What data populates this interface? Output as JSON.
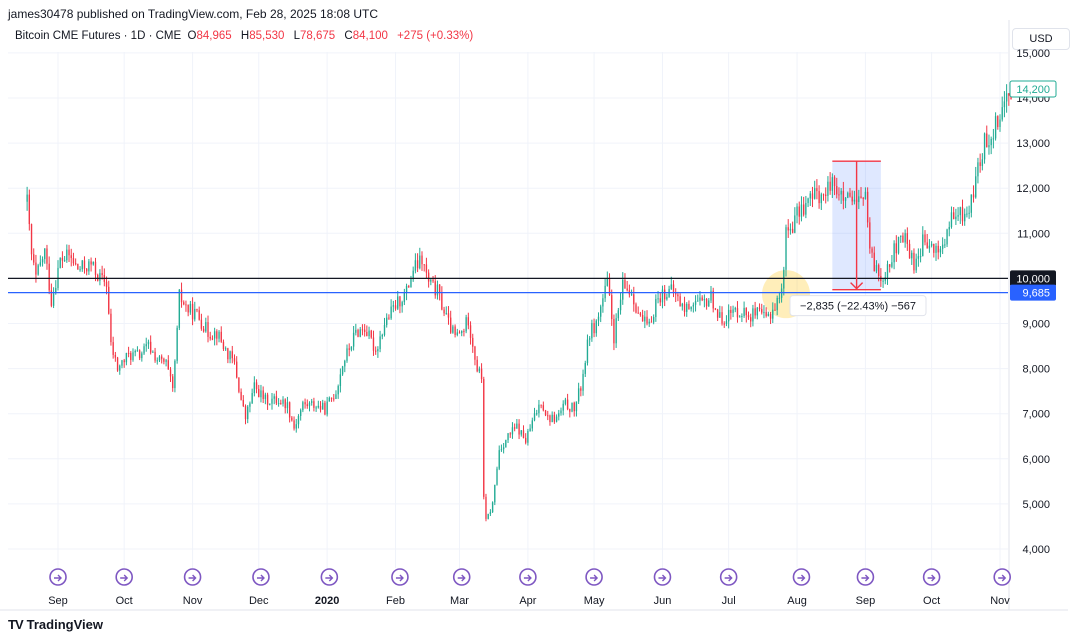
{
  "header": {
    "published": "james30478 published on TradingView.com, Feb 28, 2025 18:08 UTC"
  },
  "legend": {
    "symbol": "Bitcoin CME Futures · 1D · CME",
    "o_label": "O",
    "o_value": "84,965",
    "h_label": "H",
    "h_value": "85,530",
    "l_label": "L",
    "l_value": "78,675",
    "c_label": "C",
    "c_value": "84,100",
    "change": "+275 (+0.33%)"
  },
  "currency": "USD",
  "footer": {
    "logo": "TV",
    "brand": "TradingView"
  },
  "colors": {
    "up": "#22ab94",
    "down": "#f23645",
    "line_black": "#131722",
    "line_blue": "#2962ff",
    "accent": "#7e57c2"
  },
  "chart_data": {
    "type": "candlestick",
    "ylim": [
      3600,
      15200
    ],
    "y_ticks": [
      4000,
      5000,
      6000,
      7000,
      8000,
      9000,
      10000,
      11000,
      12000,
      13000,
      14000,
      15000
    ],
    "y_tick_labels": [
      "4,000",
      "5,000",
      "6,000",
      "7,000",
      "8,000",
      "9,000",
      "10,000",
      "11,000",
      "12,000",
      "13,000",
      "14,000",
      "15,000"
    ],
    "x_labels": [
      "Sep",
      "Oct",
      "Nov",
      "Dec",
      "2020",
      "Feb",
      "Mar",
      "Apr",
      "May",
      "Jun",
      "Jul",
      "Aug",
      "Sep",
      "Oct",
      "Nov"
    ],
    "x_label_dates": [
      "2019-09-01",
      "2019-10-01",
      "2019-11-01",
      "2019-12-01",
      "2020-01-01",
      "2020-02-01",
      "2020-03-01",
      "2020-04-01",
      "2020-05-01",
      "2020-06-01",
      "2020-07-01",
      "2020-08-01",
      "2020-09-01",
      "2020-10-01",
      "2020-11-01"
    ],
    "horizontal_lines": [
      {
        "value": 10000,
        "label": "10,000",
        "color": "#131722"
      },
      {
        "value": 9685,
        "label": "9,685",
        "color": "#2962ff"
      }
    ],
    "last_price": {
      "value": 14200,
      "label": "14,200"
    },
    "measure": {
      "start_date": "2020-08-17",
      "end_date": "2020-09-08",
      "from": 12600,
      "to": 9750,
      "label": "−2,835 (−22.43%) −567"
    },
    "highlight": {
      "date": "2020-07-27",
      "value": 9650
    },
    "event_markers": [
      "2019-09-01",
      "2019-10-01",
      "2019-11-01",
      "2019-12-02",
      "2020-01-02",
      "2020-02-03",
      "2020-03-02",
      "2020-04-01",
      "2020-05-01",
      "2020-06-01",
      "2020-07-01",
      "2020-08-03",
      "2020-09-01",
      "2020-10-01",
      "2020-11-02"
    ],
    "path": [
      [
        "2019-08-18",
        11700
      ],
      [
        "2019-08-20",
        10500
      ],
      [
        "2019-08-22",
        10000
      ],
      [
        "2019-08-26",
        10600
      ],
      [
        "2019-08-29",
        9500
      ],
      [
        "2019-09-02",
        10400
      ],
      [
        "2019-09-06",
        10500
      ],
      [
        "2019-09-10",
        10200
      ],
      [
        "2019-09-16",
        10300
      ],
      [
        "2019-09-20",
        10000
      ],
      [
        "2019-09-23",
        9900
      ],
      [
        "2019-09-25",
        8500
      ],
      [
        "2019-09-28",
        8000
      ],
      [
        "2019-10-03",
        8300
      ],
      [
        "2019-10-08",
        8300
      ],
      [
        "2019-10-12",
        8500
      ],
      [
        "2019-10-16",
        8200
      ],
      [
        "2019-10-20",
        8100
      ],
      [
        "2019-10-23",
        7500
      ],
      [
        "2019-10-25",
        8800
      ],
      [
        "2019-10-26",
        9600
      ],
      [
        "2019-10-30",
        9300
      ],
      [
        "2019-11-03",
        9200
      ],
      [
        "2019-11-08",
        8800
      ],
      [
        "2019-11-12",
        8800
      ],
      [
        "2019-11-16",
        8400
      ],
      [
        "2019-11-20",
        8100
      ],
      [
        "2019-11-23",
        7300
      ],
      [
        "2019-11-25",
        6900
      ],
      [
        "2019-11-29",
        7600
      ],
      [
        "2019-12-04",
        7300
      ],
      [
        "2019-12-10",
        7300
      ],
      [
        "2019-12-14",
        7200
      ],
      [
        "2019-12-17",
        6700
      ],
      [
        "2019-12-21",
        7200
      ],
      [
        "2019-12-26",
        7200
      ],
      [
        "2019-12-31",
        7100
      ],
      [
        "2020-01-05",
        7500
      ],
      [
        "2020-01-08",
        8100
      ],
      [
        "2020-01-14",
        8800
      ],
      [
        "2020-01-18",
        8900
      ],
      [
        "2020-01-23",
        8400
      ],
      [
        "2020-01-27",
        9000
      ],
      [
        "2020-02-01",
        9400
      ],
      [
        "2020-02-06",
        9700
      ],
      [
        "2020-02-09",
        10200
      ],
      [
        "2020-02-13",
        10400
      ],
      [
        "2020-02-16",
        9900
      ],
      [
        "2020-02-20",
        9700
      ],
      [
        "2020-02-25",
        9000
      ],
      [
        "2020-02-28",
        8700
      ],
      [
        "2020-03-02",
        8800
      ],
      [
        "2020-03-05",
        9100
      ],
      [
        "2020-03-09",
        8000
      ],
      [
        "2020-03-11",
        7800
      ],
      [
        "2020-03-12",
        5200
      ],
      [
        "2020-03-13",
        4600
      ],
      [
        "2020-03-16",
        5000
      ],
      [
        "2020-03-19",
        6200
      ],
      [
        "2020-03-23",
        6500
      ],
      [
        "2020-03-27",
        6700
      ],
      [
        "2020-03-31",
        6400
      ],
      [
        "2020-04-03",
        6800
      ],
      [
        "2020-04-07",
        7300
      ],
      [
        "2020-04-10",
        6900
      ],
      [
        "2020-04-14",
        6900
      ],
      [
        "2020-04-18",
        7200
      ],
      [
        "2020-04-22",
        7100
      ],
      [
        "2020-04-25",
        7600
      ],
      [
        "2020-04-29",
        8800
      ],
      [
        "2020-05-02",
        9000
      ],
      [
        "2020-05-07",
        9900
      ],
      [
        "2020-05-10",
        8700
      ],
      [
        "2020-05-14",
        9800
      ],
      [
        "2020-05-18",
        9700
      ],
      [
        "2020-05-22",
        9100
      ],
      [
        "2020-05-26",
        8900
      ],
      [
        "2020-05-29",
        9500
      ],
      [
        "2020-06-02",
        9700
      ],
      [
        "2020-06-06",
        9700
      ],
      [
        "2020-06-11",
        9300
      ],
      [
        "2020-06-15",
        9500
      ],
      [
        "2020-06-19",
        9400
      ],
      [
        "2020-06-23",
        9600
      ],
      [
        "2020-06-27",
        9100
      ],
      [
        "2020-07-01",
        9200
      ],
      [
        "2020-07-06",
        9300
      ],
      [
        "2020-07-10",
        9200
      ],
      [
        "2020-07-14",
        9200
      ],
      [
        "2020-07-18",
        9100
      ],
      [
        "2020-07-22",
        9400
      ],
      [
        "2020-07-25",
        9700
      ],
      [
        "2020-07-27",
        11000
      ],
      [
        "2020-07-30",
        11200
      ],
      [
        "2020-08-02",
        11500
      ],
      [
        "2020-08-06",
        11700
      ],
      [
        "2020-08-10",
        11900
      ],
      [
        "2020-08-14",
        11800
      ],
      [
        "2020-08-17",
        12300
      ],
      [
        "2020-08-20",
        11800
      ],
      [
        "2020-08-24",
        11700
      ],
      [
        "2020-08-28",
        11600
      ],
      [
        "2020-09-01",
        11900
      ],
      [
        "2020-09-03",
        10500
      ],
      [
        "2020-09-06",
        10200
      ],
      [
        "2020-09-08",
        10000
      ],
      [
        "2020-09-11",
        10300
      ],
      [
        "2020-09-15",
        10700
      ],
      [
        "2020-09-19",
        10900
      ],
      [
        "2020-09-23",
        10300
      ],
      [
        "2020-09-27",
        10800
      ],
      [
        "2020-10-02",
        10600
      ],
      [
        "2020-10-06",
        10700
      ],
      [
        "2020-10-10",
        11300
      ],
      [
        "2020-10-14",
        11400
      ],
      [
        "2020-10-18",
        11500
      ],
      [
        "2020-10-21",
        12200
      ],
      [
        "2020-10-25",
        13000
      ],
      [
        "2020-10-28",
        13200
      ],
      [
        "2020-11-01",
        13700
      ],
      [
        "2020-11-04",
        14000
      ],
      [
        "2020-11-06",
        14200
      ]
    ]
  }
}
